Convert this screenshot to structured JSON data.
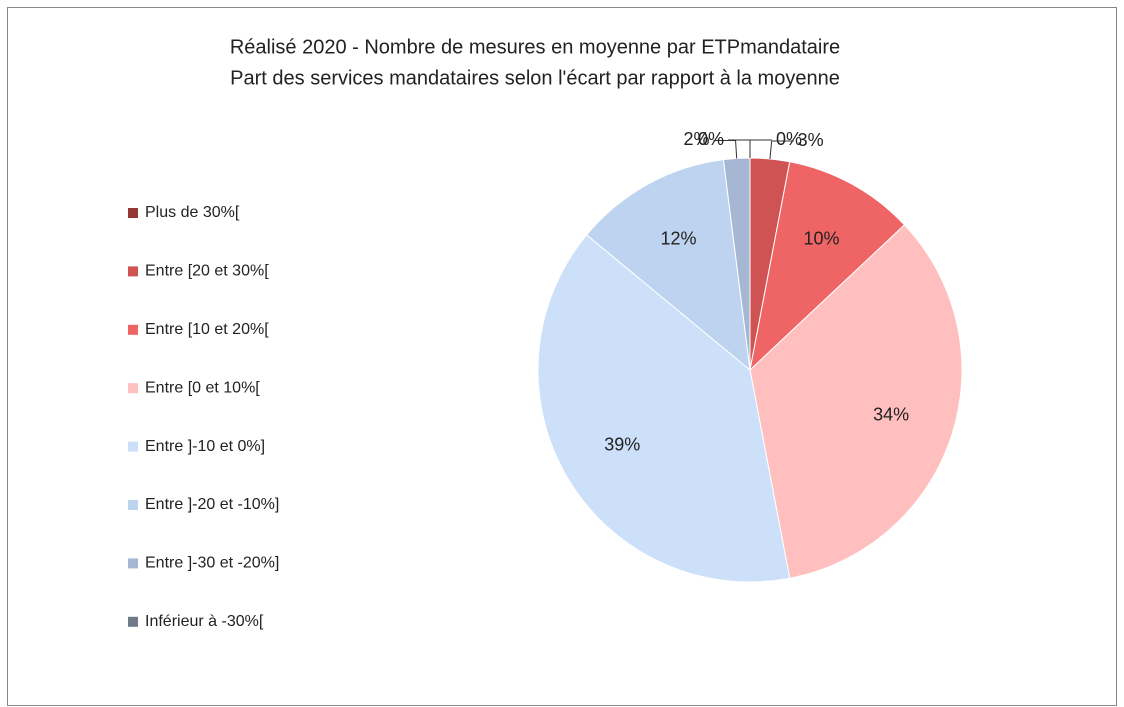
{
  "chart_data": {
    "type": "pie",
    "title": "Réalisé 2020 - Nombre de mesures en moyenne par ETPmandataire",
    "subtitle": "Part des services mandataires selon l'écart par rapport à la moyenne",
    "categories": [
      "Plus de 30%[",
      "Entre [20 et 30%[",
      "Entre [10 et 20%[",
      "Entre [0 et 10%[",
      "Entre ]-10 et 0%]",
      "Entre ]-20 et -10%]",
      "Entre ]-30 et -20%]",
      "Inférieur à -30%["
    ],
    "values": [
      0,
      3,
      10,
      34,
      39,
      12,
      2,
      0
    ],
    "value_labels": [
      "0%",
      "3%",
      "10%",
      "34%",
      "39%",
      "12%",
      "2%",
      "0%"
    ],
    "colors": [
      "#953735",
      "#d05353",
      "#ef6464",
      "#ffbfbf",
      "#cce0fa",
      "#bdd3ef",
      "#a5b7d3",
      "#6f7b8b"
    ],
    "legend": "left"
  }
}
